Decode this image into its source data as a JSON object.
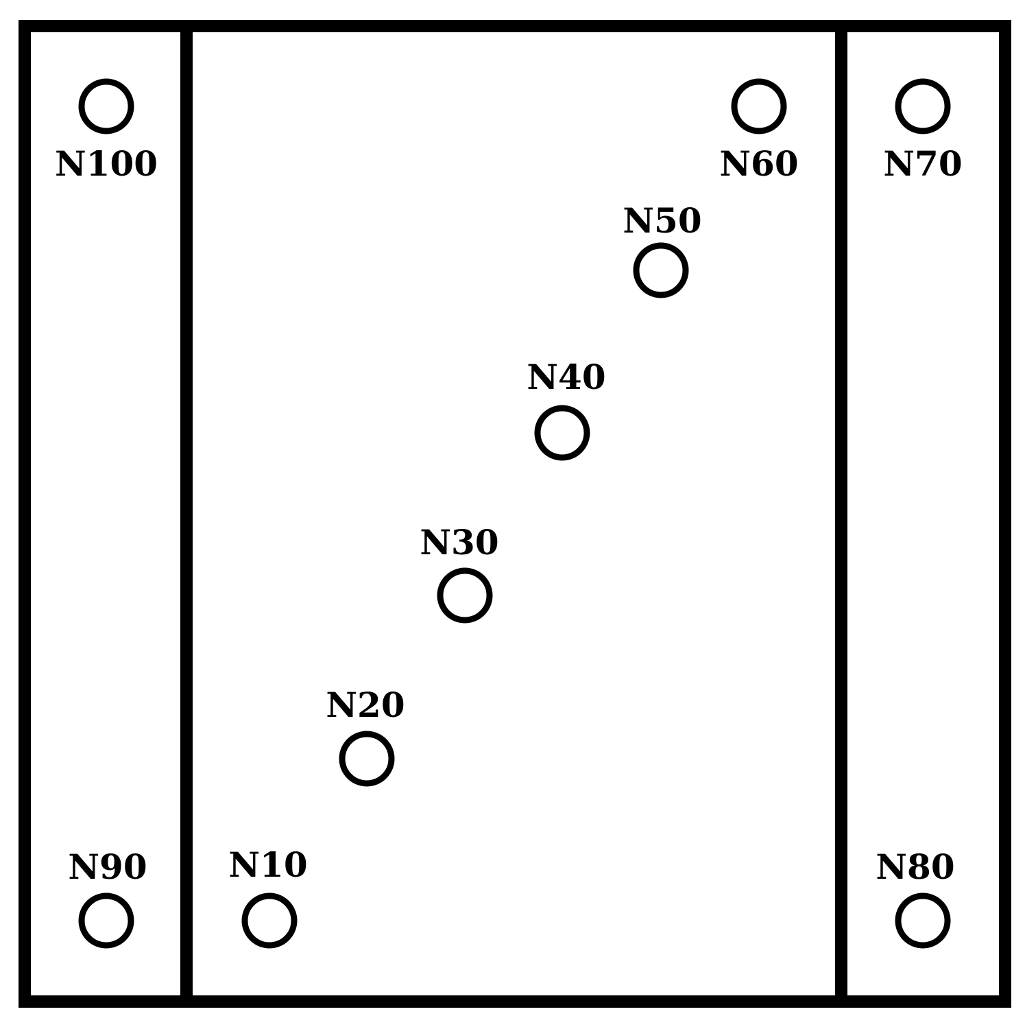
{
  "diagram": {
    "colors": {
      "line": "#000000",
      "background": "#ffffff"
    },
    "nodes": [
      {
        "id": "n10",
        "label": "N10"
      },
      {
        "id": "n20",
        "label": "N20"
      },
      {
        "id": "n30",
        "label": "N30"
      },
      {
        "id": "n40",
        "label": "N40"
      },
      {
        "id": "n50",
        "label": "N50"
      },
      {
        "id": "n60",
        "label": "N60"
      },
      {
        "id": "n70",
        "label": "N70"
      },
      {
        "id": "n80",
        "label": "N80"
      },
      {
        "id": "n90",
        "label": "N90"
      },
      {
        "id": "n100",
        "label": "N100"
      }
    ]
  }
}
